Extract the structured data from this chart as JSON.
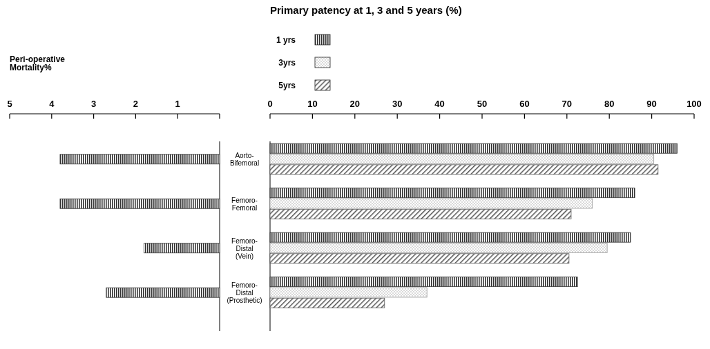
{
  "chart_data": [
    {
      "type": "bar",
      "orientation": "horizontal",
      "title": "Peri-operative Mortality%",
      "categories": [
        null,
        null,
        null,
        null
      ],
      "xlim": [
        5,
        0
      ],
      "xticks": [
        5,
        4,
        3,
        2,
        1,
        {
          "value": 0,
          "label": null
        }
      ],
      "series": [
        {
          "color": "#333333",
          "values": [
            3.8,
            3.8,
            1.8,
            2.7
          ]
        }
      ]
    },
    {
      "type": "bar",
      "orientation": "horizontal",
      "title": "Primary patency at 1, 3 and 5 years (%)",
      "categories": [
        "Aorto-Bifemoral",
        "Femoro-Femoral",
        "Femoro-Distal (Vein)",
        "Femoro-Distal (Prosthetic)"
      ],
      "xlim": [
        0,
        100
      ],
      "xticks": [
        0,
        10,
        20,
        30,
        40,
        50,
        60,
        70,
        80,
        90,
        100
      ],
      "legend": "top left",
      "series": [
        {
          "name": "1 yrs",
          "color": "#333333",
          "values": [
            96,
            86,
            85,
            72.5
          ]
        },
        {
          "name": "3yrs",
          "color": "#999999",
          "values": [
            90.5,
            76,
            79.5,
            37
          ]
        },
        {
          "name": "5yrs",
          "color": "#555555",
          "values": [
            91.5,
            71,
            70.5,
            27
          ]
        }
      ]
    }
  ]
}
